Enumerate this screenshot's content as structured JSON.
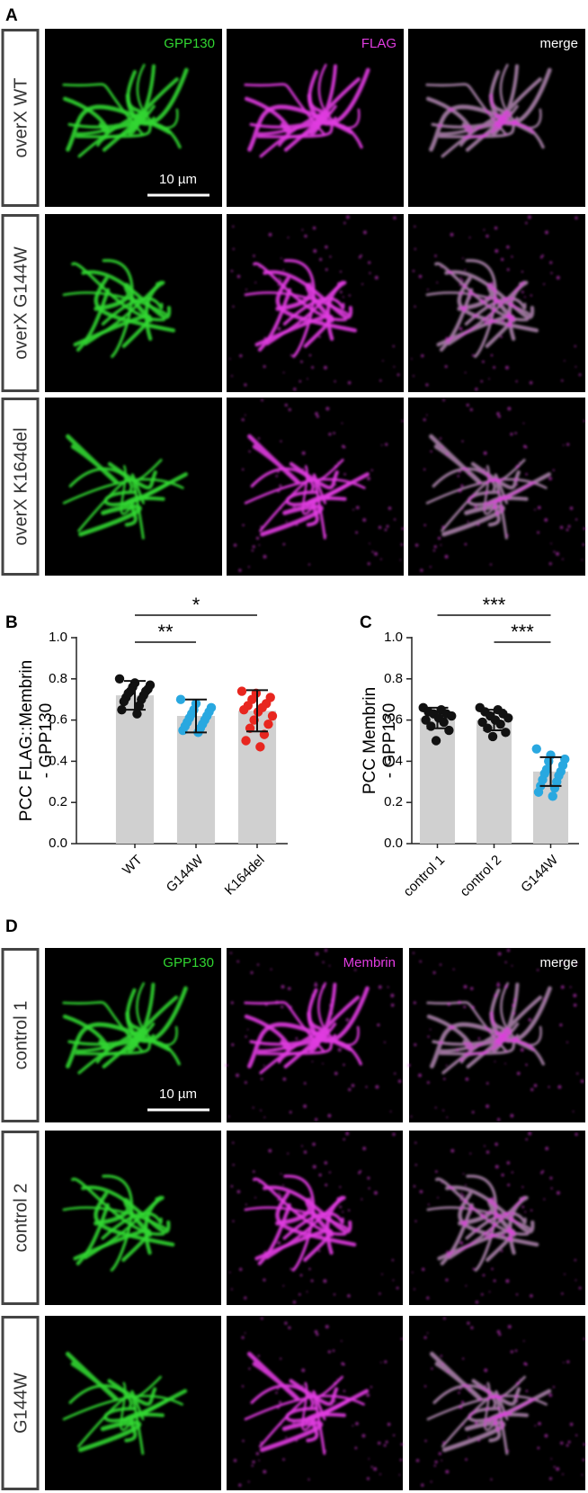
{
  "panel_a": {
    "label": "A",
    "channels": [
      "GPP130",
      "FLAG",
      "merge"
    ],
    "rows": [
      "overX WT",
      "overX G144W",
      "overX K164del"
    ],
    "scale_bar": "10 µm"
  },
  "chart_data": [
    {
      "type": "bar",
      "panel": "B",
      "ylabel": [
        "PCC FLAG::Membrin",
        "- GPP130"
      ],
      "categories": [
        "WT",
        "G144W",
        "K164del"
      ],
      "values": [
        0.72,
        0.62,
        0.645
      ],
      "errors": [
        0.07,
        0.08,
        0.1
      ],
      "color": "#d0d0d0",
      "points": [
        [
          0.8,
          0.78,
          0.77,
          0.76,
          0.75,
          0.74,
          0.74,
          0.73,
          0.72,
          0.71,
          0.7,
          0.69,
          0.67,
          0.65,
          0.63
        ],
        [
          0.7,
          0.68,
          0.66,
          0.65,
          0.64,
          0.63,
          0.62,
          0.61,
          0.6,
          0.59,
          0.58,
          0.57,
          0.56,
          0.55,
          0.54
        ],
        [
          0.74,
          0.73,
          0.71,
          0.7,
          0.68,
          0.67,
          0.66,
          0.65,
          0.64,
          0.62,
          0.6,
          0.58,
          0.56,
          0.53,
          0.5,
          0.47
        ]
      ],
      "point_colors": [
        "#111111",
        "#29a8e0",
        "#e8261f"
      ],
      "significance": [
        {
          "label": "**",
          "between": [
            "WT",
            "G144W"
          ]
        },
        {
          "label": "*",
          "between": [
            "WT",
            "K164del"
          ]
        }
      ],
      "ylim": [
        0,
        1
      ],
      "yticks": [
        {
          "value": 0,
          "label": "0.0"
        },
        0.2,
        0.4,
        0.6,
        0.8,
        {
          "value": 1,
          "label": "1.0"
        }
      ]
    },
    {
      "type": "bar",
      "panel": "C",
      "ylabel": [
        "PCC Membrin",
        "- GPP130"
      ],
      "categories": [
        "control 1",
        "control 2",
        "G144W"
      ],
      "values": [
        0.61,
        0.6,
        0.35
      ],
      "errors": [
        0.05,
        0.05,
        0.07
      ],
      "color": "#d0d0d0",
      "points": [
        [
          0.66,
          0.65,
          0.64,
          0.63,
          0.63,
          0.62,
          0.61,
          0.6,
          0.59,
          0.57,
          0.55,
          0.5
        ],
        [
          0.66,
          0.65,
          0.64,
          0.63,
          0.62,
          0.61,
          0.6,
          0.59,
          0.58,
          0.56,
          0.54,
          0.52
        ],
        [
          0.46,
          0.43,
          0.41,
          0.4,
          0.38,
          0.36,
          0.35,
          0.34,
          0.33,
          0.31,
          0.3,
          0.28,
          0.27,
          0.25,
          0.23
        ]
      ],
      "point_colors": [
        "#111111",
        "#111111",
        "#29a8e0"
      ],
      "significance": [
        {
          "label": "***",
          "between": [
            "control 2",
            "G144W"
          ]
        },
        {
          "label": "***",
          "between": [
            "control 1",
            "G144W"
          ]
        }
      ],
      "ylim": [
        0,
        1
      ],
      "yticks": [
        {
          "value": 0,
          "label": "0.0"
        },
        0.2,
        0.4,
        0.6,
        0.8,
        {
          "value": 1,
          "label": "1.0"
        }
      ]
    }
  ],
  "panel_d": {
    "label": "D",
    "channels": [
      "GPP130",
      "Membrin",
      "merge"
    ],
    "rows": [
      "control 1",
      "control 2",
      "G144W"
    ],
    "scale_bar": "10 µm"
  }
}
